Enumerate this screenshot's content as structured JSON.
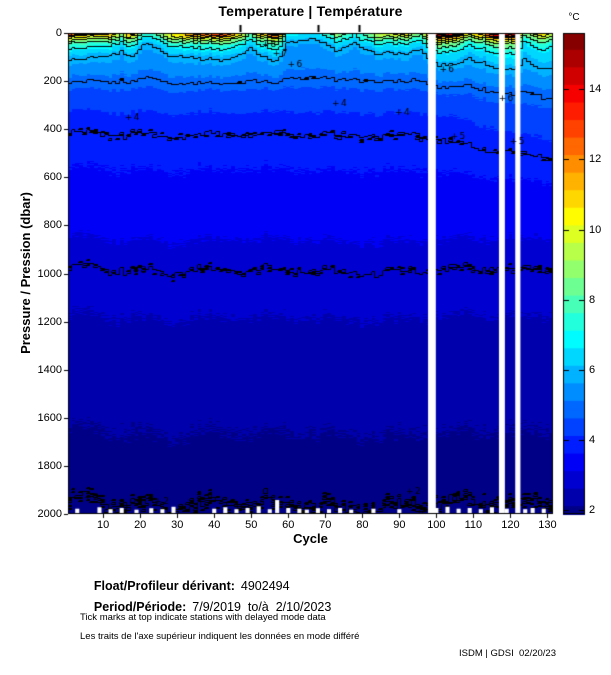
{
  "footer": {
    "float_label": "Float/Profileur dérivant:",
    "float_value": "4902494",
    "period_label": "Period/Période:",
    "period_value": "7/9/2019  to/à  2/10/2023",
    "note_en": "Tick marks at top indicate stations with delayed mode data",
    "note_fr": "Les traits de l'axe supérieur indiquent les données en mode différé",
    "credit": "ISDM | GDSI  02/20/23"
  },
  "chart_data": {
    "type": "heatmap",
    "title": "Temperature | Température",
    "xlabel": "Cycle",
    "ylabel": "Pressure / Pression (dbar)",
    "colorbar_label": "°C",
    "colormap": "jet",
    "x_range": [
      0.5,
      131.5
    ],
    "y_range": [
      0,
      2000
    ],
    "temp_range": [
      1.9,
      15.6
    ],
    "x_ticks": [
      10,
      20,
      30,
      40,
      50,
      60,
      70,
      80,
      90,
      100,
      110,
      120,
      130
    ],
    "y_ticks": [
      0,
      200,
      400,
      600,
      800,
      1000,
      1200,
      1400,
      1600,
      1800,
      2000
    ],
    "colorbar_ticks": [
      2,
      4,
      6,
      8,
      10,
      12,
      14
    ],
    "contour_levels": [
      2,
      3,
      4,
      5,
      6,
      7,
      8,
      9,
      10,
      11,
      12,
      13,
      14,
      15
    ],
    "delayed_mode_cycles": [
      47,
      68,
      79
    ],
    "missing_cycles": [
      {
        "cycle": 98.8,
        "width": 2.1
      },
      {
        "cycle": 117.7,
        "width": 1.6
      },
      {
        "cycle": 122.0,
        "width": 1.4
      }
    ],
    "surface_series": {
      "cycles": [
        1,
        4,
        8,
        12,
        15,
        18,
        21,
        24,
        28,
        32,
        37,
        42,
        46,
        50,
        53,
        57,
        60,
        64,
        68,
        73,
        78,
        82,
        86,
        92,
        96,
        99,
        101,
        105,
        109,
        113,
        116,
        119,
        121,
        124,
        128,
        131
      ],
      "temps": [
        13.5,
        14.6,
        12.5,
        11,
        9,
        12,
        7.5,
        8,
        10,
        11,
        13,
        13.6,
        11,
        8,
        12,
        14.3,
        7,
        6.6,
        6.5,
        9,
        7,
        8.5,
        10,
        10.5,
        8,
        13,
        15.2,
        15.4,
        10.5,
        11,
        14,
        15,
        15,
        8,
        10.5,
        9
      ]
    },
    "profile": {
      "depths": [
        0,
        10,
        25,
        50,
        90,
        150,
        250,
        350,
        500,
        700,
        1000,
        1300,
        1600,
        1900,
        2000
      ],
      "base_temp": [
        5.0,
        5.05,
        5.1,
        5.15,
        5.25,
        5.15,
        4.55,
        4.15,
        3.85,
        3.55,
        2.98,
        2.6,
        2.3,
        2.05,
        1.97
      ],
      "anomaly_fraction": [
        1,
        0.92,
        0.6,
        0.32,
        0.13,
        0.05,
        0.015,
        0,
        0,
        0,
        0,
        0,
        0,
        0,
        0
      ]
    },
    "contour_labels": [
      {
        "level": 8,
        "cycle": 56,
        "depth": 45
      },
      {
        "level": 7,
        "cycle": 59,
        "depth": 85
      },
      {
        "level": 6,
        "cycle": 63,
        "depth": 130
      },
      {
        "level": 6,
        "cycle": 104,
        "depth": 150
      },
      {
        "level": 6,
        "cycle": 120,
        "depth": 270
      },
      {
        "level": 5,
        "cycle": 107,
        "depth": 430
      },
      {
        "level": 5,
        "cycle": 123,
        "depth": 450
      },
      {
        "level": 4,
        "cycle": 19,
        "depth": 350
      },
      {
        "level": 4,
        "cycle": 75,
        "depth": 290
      },
      {
        "level": 4,
        "cycle": 92,
        "depth": 330
      },
      {
        "level": 3,
        "cycle": 21,
        "depth": 985
      },
      {
        "level": 2,
        "cycle": 8,
        "depth": 1930
      },
      {
        "level": 2,
        "cycle": 27,
        "depth": 1948
      },
      {
        "level": 2,
        "cycle": 95,
        "depth": 1905
      }
    ],
    "bottom_gaps": [
      {
        "cycle": 3,
        "top": 1978
      },
      {
        "cycle": 9,
        "top": 1972
      },
      {
        "cycle": 12,
        "top": 1980
      },
      {
        "cycle": 15,
        "top": 1975
      },
      {
        "cycle": 19,
        "top": 1982
      },
      {
        "cycle": 23,
        "top": 1976
      },
      {
        "cycle": 26,
        "top": 1980
      },
      {
        "cycle": 29,
        "top": 1970
      },
      {
        "cycle": 40,
        "top": 1978
      },
      {
        "cycle": 43,
        "top": 1972
      },
      {
        "cycle": 46,
        "top": 1980
      },
      {
        "cycle": 49,
        "top": 1975
      },
      {
        "cycle": 52,
        "top": 1968
      },
      {
        "cycle": 55,
        "top": 1980
      },
      {
        "cycle": 57,
        "top": 1942
      },
      {
        "cycle": 60,
        "top": 1975
      },
      {
        "cycle": 63,
        "top": 1978
      },
      {
        "cycle": 65,
        "top": 1982
      },
      {
        "cycle": 68,
        "top": 1976
      },
      {
        "cycle": 71,
        "top": 1980
      },
      {
        "cycle": 74,
        "top": 1975
      },
      {
        "cycle": 77,
        "top": 1982
      },
      {
        "cycle": 83,
        "top": 1978
      },
      {
        "cycle": 90,
        "top": 1980
      },
      {
        "cycle": 100,
        "top": 1975
      },
      {
        "cycle": 103,
        "top": 1970
      },
      {
        "cycle": 106,
        "top": 1978
      },
      {
        "cycle": 109,
        "top": 1975
      },
      {
        "cycle": 112,
        "top": 1980
      },
      {
        "cycle": 115,
        "top": 1972
      },
      {
        "cycle": 119,
        "top": 1978
      },
      {
        "cycle": 124,
        "top": 1980
      },
      {
        "cycle": 126,
        "top": 1975
      },
      {
        "cycle": 129,
        "top": 1978
      }
    ]
  }
}
